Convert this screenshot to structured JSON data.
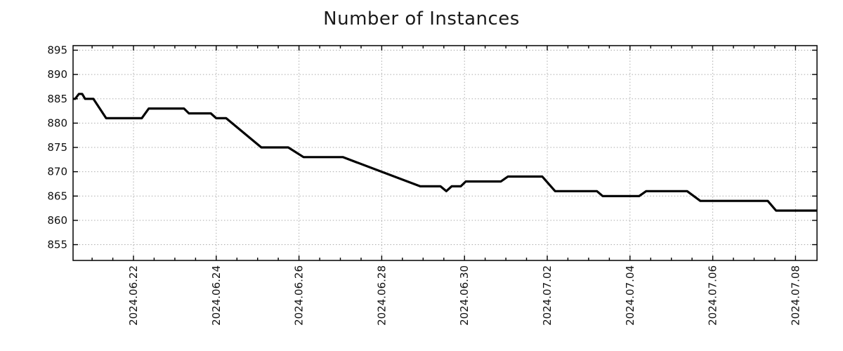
{
  "chart_data": {
    "type": "line",
    "title": "Number of Instances",
    "xlabel": "",
    "ylabel": "",
    "legend": "none",
    "grid": "dotted-both-axes",
    "line_color": "#000000",
    "background_color": "#ffffff",
    "y_ticks": [
      855,
      860,
      865,
      870,
      875,
      880,
      885,
      890,
      895
    ],
    "ylim": [
      852,
      896
    ],
    "x_ticks": [
      {
        "day": 0,
        "label": "2024.06.22"
      },
      {
        "day": 2,
        "label": "2024.06.24"
      },
      {
        "day": 4,
        "label": "2024.06.26"
      },
      {
        "day": 6,
        "label": "2024.06.28"
      },
      {
        "day": 8,
        "label": "2024.06.30"
      },
      {
        "day": 10,
        "label": "2024.07.02"
      },
      {
        "day": 12,
        "label": "2024.07.04"
      },
      {
        "day": 14,
        "label": "2024.07.06"
      },
      {
        "day": 16,
        "label": "2024.07.08"
      }
    ],
    "xlim_days": [
      -1.46,
      16.52
    ],
    "minor_tick_interval_days": 0.5,
    "x_unit": "days relative to 2024.06.22",
    "points_days_vs_value": [
      [
        -1.46,
        885
      ],
      [
        -1.41,
        885
      ],
      [
        -1.32,
        886
      ],
      [
        -1.24,
        886
      ],
      [
        -1.17,
        885
      ],
      [
        -0.97,
        885
      ],
      [
        -0.66,
        881
      ],
      [
        0.2,
        881
      ],
      [
        0.37,
        883
      ],
      [
        1.22,
        883
      ],
      [
        1.34,
        882
      ],
      [
        1.87,
        882
      ],
      [
        2.0,
        881
      ],
      [
        2.24,
        881
      ],
      [
        3.09,
        875
      ],
      [
        3.74,
        875
      ],
      [
        4.11,
        873
      ],
      [
        5.06,
        873
      ],
      [
        6.93,
        867
      ],
      [
        7.42,
        867
      ],
      [
        7.56,
        866
      ],
      [
        7.69,
        867
      ],
      [
        7.91,
        867
      ],
      [
        8.03,
        868
      ],
      [
        8.88,
        868
      ],
      [
        9.05,
        869
      ],
      [
        9.88,
        869
      ],
      [
        10.19,
        866
      ],
      [
        11.2,
        866
      ],
      [
        11.34,
        865
      ],
      [
        12.22,
        865
      ],
      [
        12.39,
        866
      ],
      [
        13.38,
        866
      ],
      [
        13.7,
        864
      ],
      [
        15.33,
        864
      ],
      [
        15.53,
        862
      ],
      [
        16.52,
        862
      ]
    ]
  }
}
